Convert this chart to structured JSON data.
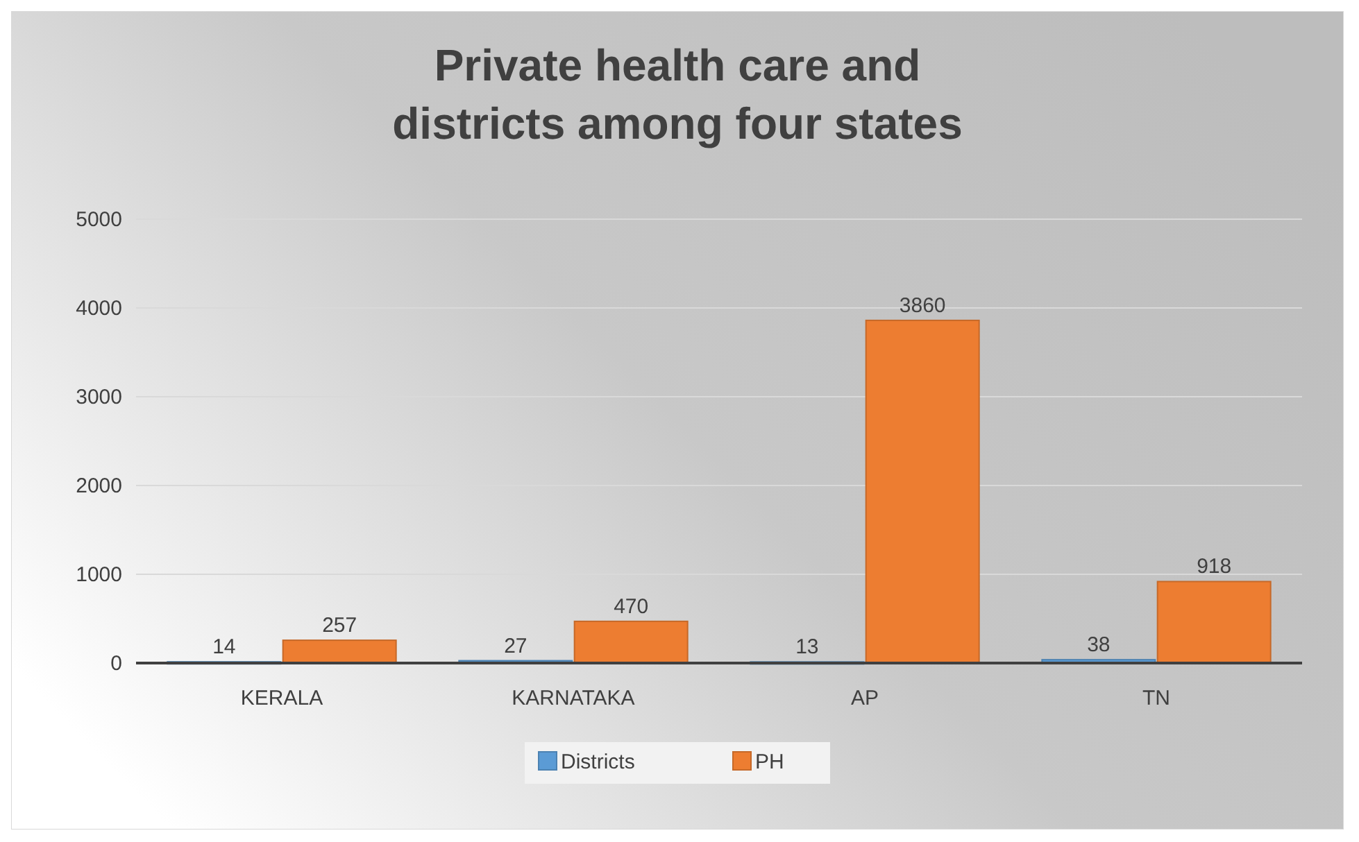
{
  "chart_data": {
    "type": "bar",
    "title": "Private health care and districts among four states",
    "categories": [
      "KERALA",
      "KARNATAKA",
      "AP",
      "TN"
    ],
    "series": [
      {
        "name": "Districts",
        "color": "#5b9bd5",
        "values": [
          14,
          27,
          13,
          38
        ]
      },
      {
        "name": "PH",
        "color": "#ed7d31",
        "values": [
          257,
          470,
          3860,
          918
        ]
      }
    ],
    "ylim": [
      0,
      5000
    ],
    "yticks": [
      0,
      1000,
      2000,
      3000,
      4000,
      5000
    ],
    "grid": "y",
    "legend": "bottom",
    "data_labels": true
  }
}
